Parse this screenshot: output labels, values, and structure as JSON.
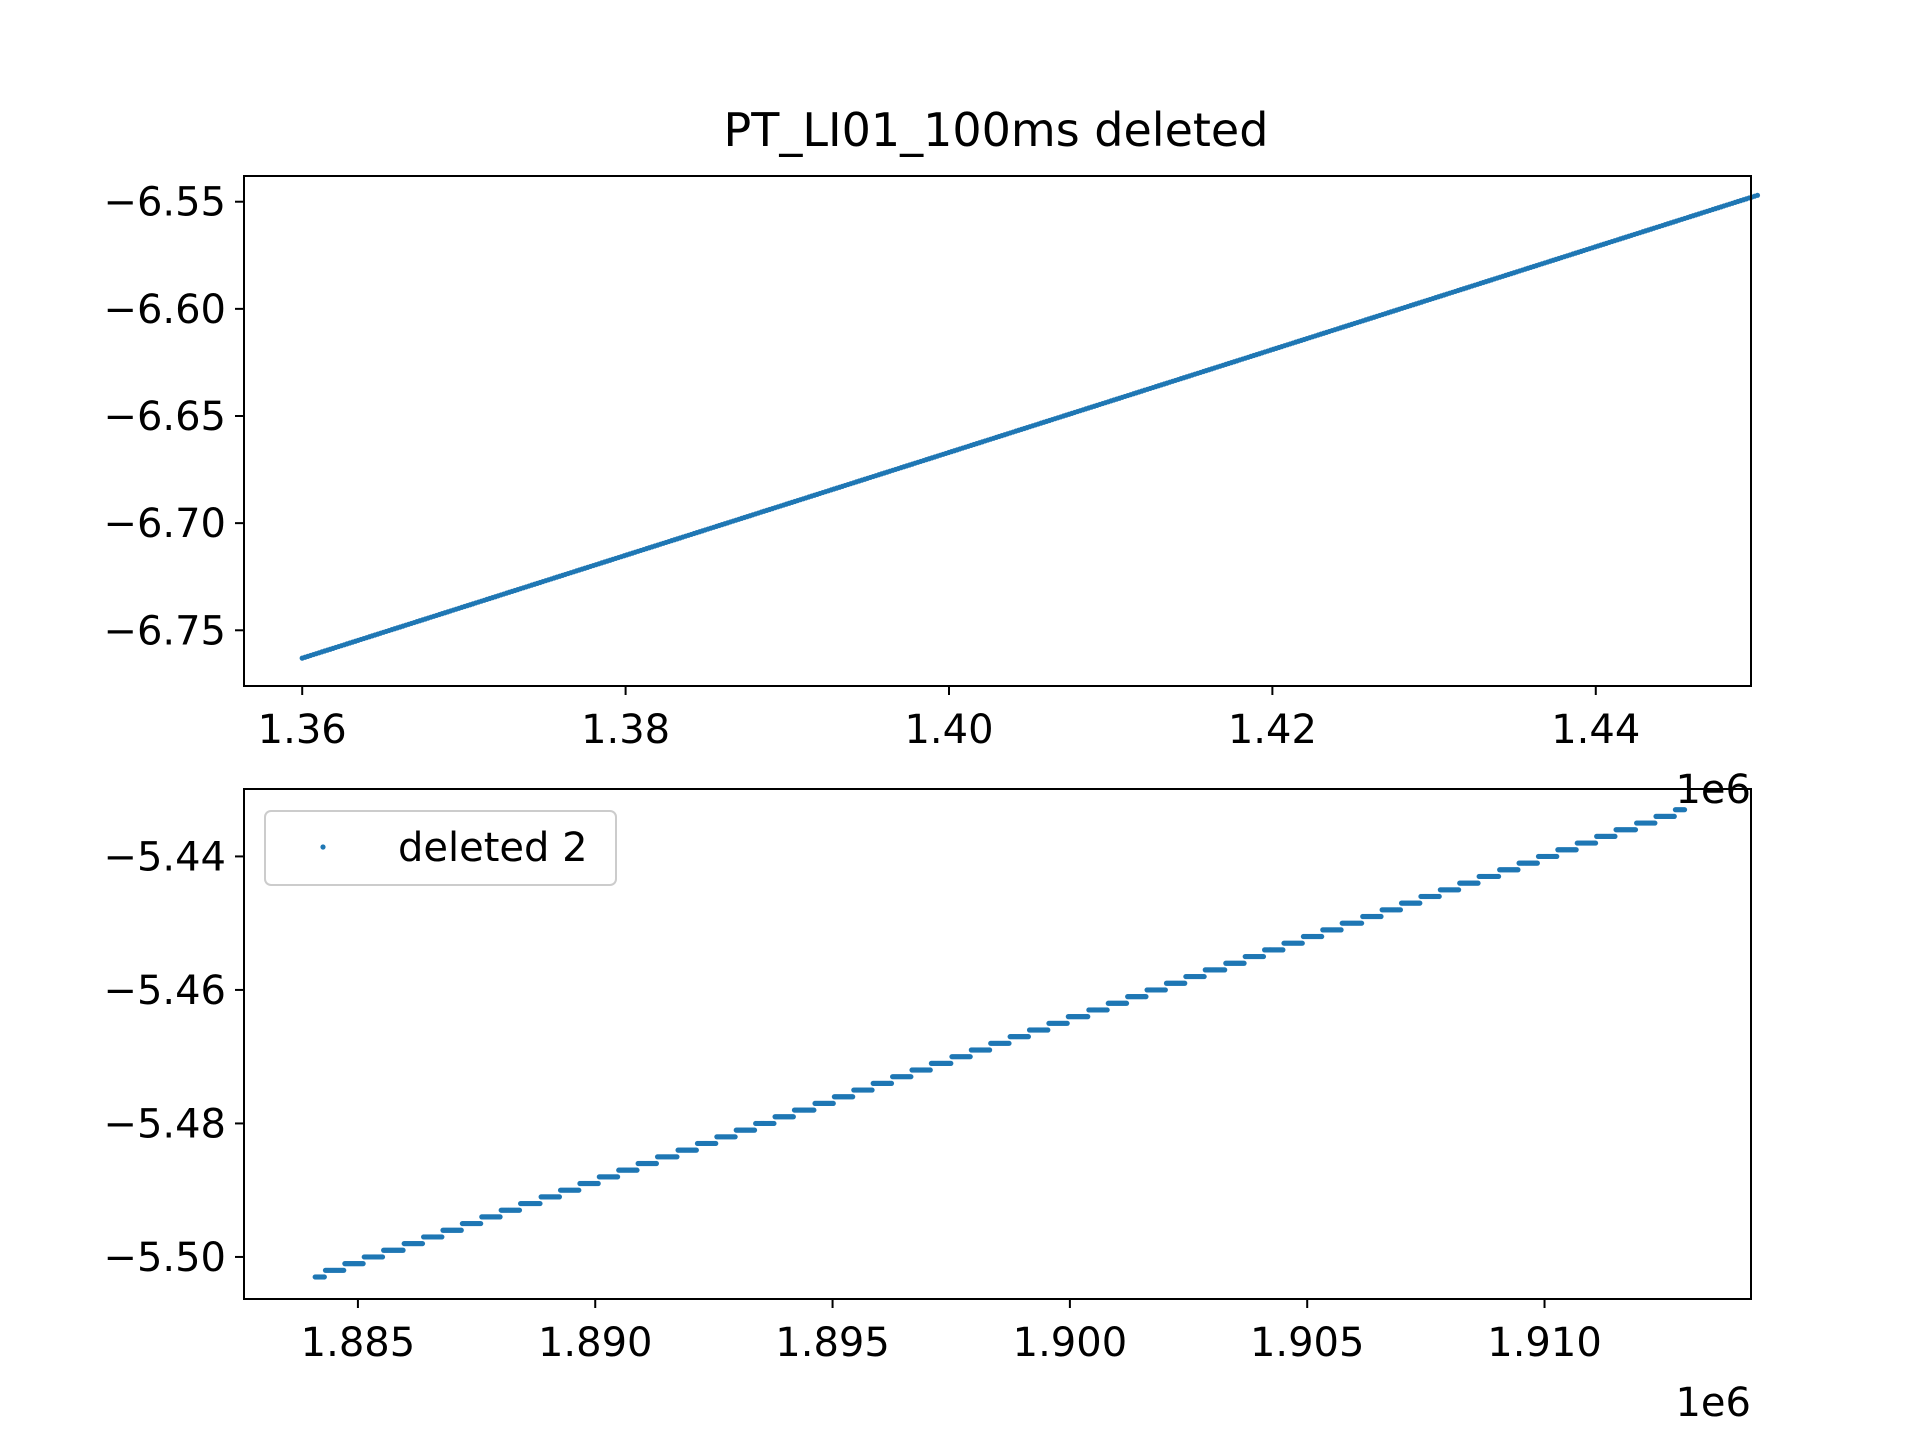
{
  "figure": {
    "title": "PT_LI01_100ms deleted"
  },
  "chart_data": [
    {
      "type": "scatter",
      "title": "PT_LI01_100ms deleted",
      "xlabel": "",
      "ylabel": "",
      "x_offset_text": "1e6",
      "xlim": [
        1356400,
        1449600
      ],
      "ylim": [
        -6.776,
        -6.538
      ],
      "xticks": [
        1360000,
        1380000,
        1400000,
        1420000,
        1440000
      ],
      "xtick_labels": [
        "1.36",
        "1.38",
        "1.40",
        "1.42",
        "1.44"
      ],
      "yticks": [
        -6.55,
        -6.6,
        -6.65,
        -6.7,
        -6.75
      ],
      "ytick_labels": [
        "−6.55",
        "−6.60",
        "−6.65",
        "−6.70",
        "−6.75"
      ],
      "grid": false,
      "legend": null,
      "color": "#1f77b4",
      "series": [
        {
          "x_start": 1360000,
          "x_end": 1450000,
          "y_start": -6.763,
          "y_end": -6.547,
          "trend": "linear increasing"
        }
      ]
    },
    {
      "type": "scatter",
      "title": "",
      "xlabel": "",
      "ylabel": "",
      "x_offset_text": "1e6",
      "xlim": [
        1882600,
        1914350
      ],
      "ylim": [
        -5.5063,
        -5.4299
      ],
      "xticks": [
        1885000,
        1890000,
        1895000,
        1900000,
        1905000,
        1910000
      ],
      "xtick_labels": [
        "1.885",
        "1.890",
        "1.895",
        "1.900",
        "1.905",
        "1.910"
      ],
      "yticks": [
        -5.44,
        -5.46,
        -5.48,
        -5.5
      ],
      "ytick_labels": [
        "−5.44",
        "−5.46",
        "−5.48",
        "−5.50"
      ],
      "grid": false,
      "legend": "upper left",
      "color": "#1f77b4",
      "series": [
        {
          "name": "deleted 2",
          "x_start": 1884100,
          "x_end": 1912950,
          "y_start": -5.503,
          "y_end": -5.433,
          "quantization_step": 0.001,
          "trend": "linear increasing, step-quantized"
        }
      ]
    }
  ]
}
